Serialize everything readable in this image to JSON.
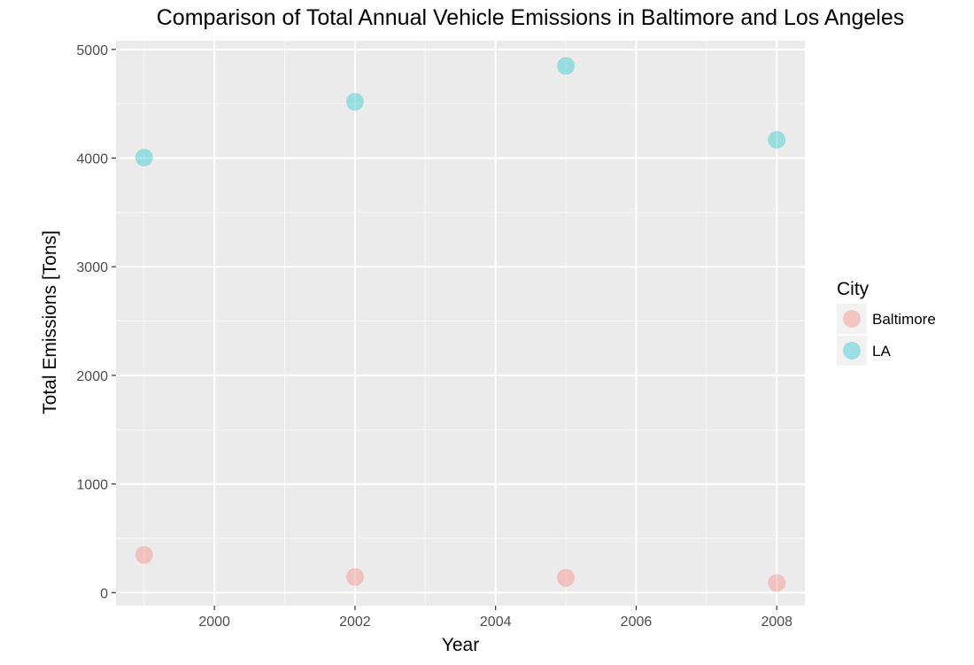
{
  "chart_data": {
    "type": "scatter",
    "title": "Comparison of Total Annual Vehicle Emissions in Baltimore and Los Angeles",
    "xlabel": "Year",
    "ylabel": "Total Emissions [Tons]",
    "xlim": [
      1998.6,
      2008.4
    ],
    "ylim": [
      -120,
      5080
    ],
    "x_ticks": [
      2000,
      2002,
      2004,
      2006,
      2008
    ],
    "x_tick_labels": [
      "2000",
      "2002",
      "2004",
      "2006",
      "2008"
    ],
    "x_minor_ticks": [
      1999,
      2001,
      2003,
      2005,
      2007
    ],
    "y_ticks": [
      0,
      1000,
      2000,
      3000,
      4000,
      5000
    ],
    "y_tick_labels": [
      "0",
      "1000",
      "2000",
      "3000",
      "4000",
      "5000"
    ],
    "y_minor_ticks": [
      500,
      1500,
      2500,
      3500,
      4500
    ],
    "grid": true,
    "panel_background": "#ebebeb",
    "legend": {
      "title": "City",
      "placement": "right"
    },
    "series": [
      {
        "name": "Baltimore",
        "color": "#f8766d",
        "x": [
          1999,
          2002,
          2005,
          2008
        ],
        "y": [
          347,
          144,
          138,
          89
        ]
      },
      {
        "name": "LA",
        "color": "#00bfc4",
        "x": [
          1999,
          2002,
          2005,
          2008
        ],
        "y": [
          4004,
          4518,
          4848,
          4168
        ]
      }
    ]
  }
}
